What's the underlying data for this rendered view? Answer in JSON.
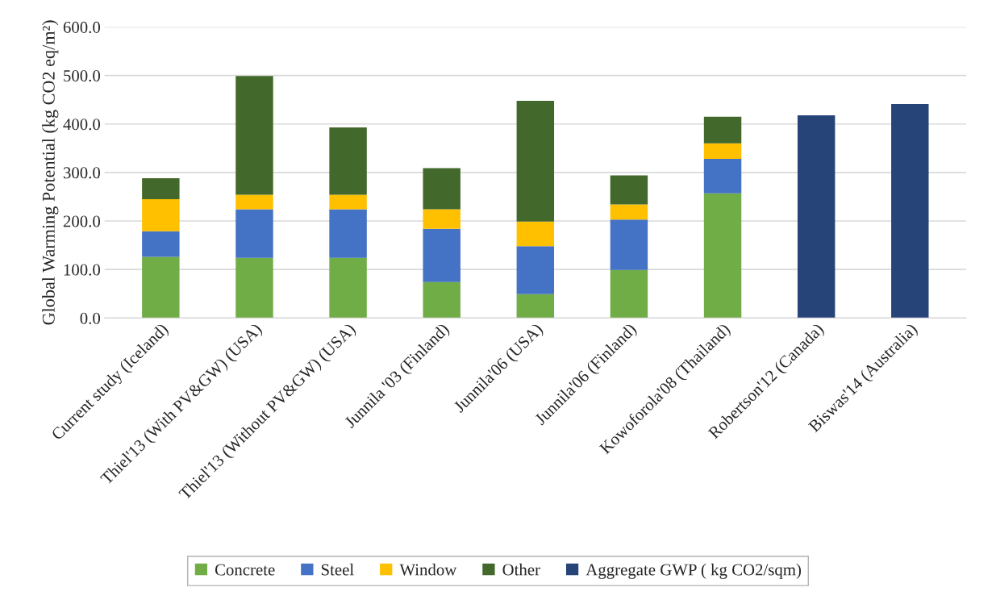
{
  "chart_data": {
    "type": "bar",
    "stacked": true,
    "ylabel": "Global Warming Potential (kg CO2 eq/m²)",
    "categories": [
      "Current study (Iceland)",
      "Thiel'13 (With PV&GW) (USA)",
      "Thiel'13 (Without PV&GW) (USA)",
      "Junnila '03 (Finland)",
      "Junnila'06 (USA)",
      "Junnila'06 (Finland)",
      "Kowoforola'08 (Thailand)",
      "Robertson'12 (Canada)",
      "Biswas'14 (Australia)"
    ],
    "series": [
      {
        "name": "Concrete",
        "color": "#70ad47",
        "values": [
          126,
          124,
          124,
          74,
          49,
          99,
          257,
          null,
          null
        ]
      },
      {
        "name": "Steel",
        "color": "#4472c4",
        "values": [
          53,
          100,
          100,
          110,
          99,
          104,
          71,
          null,
          null
        ]
      },
      {
        "name": "Window",
        "color": "#ffc000",
        "values": [
          66,
          30,
          30,
          40,
          51,
          31,
          32,
          null,
          null
        ]
      },
      {
        "name": "Other",
        "color": "#43682b",
        "values": [
          43,
          245,
          139,
          85,
          249,
          60,
          55,
          null,
          null
        ]
      },
      {
        "name": "Aggregate GWP ( kg CO2/sqm)",
        "color": "#264478",
        "values": [
          null,
          null,
          null,
          null,
          null,
          null,
          null,
          418,
          441
        ]
      }
    ],
    "ylim": [
      0,
      600
    ],
    "yticks": [
      {
        "value": 0,
        "label": "0.0"
      },
      {
        "value": 100,
        "label": "100.0"
      },
      {
        "value": 200,
        "label": "200.0"
      },
      {
        "value": 300,
        "label": "300.0"
      },
      {
        "value": 400,
        "label": "400.0"
      },
      {
        "value": 500,
        "label": "500.0"
      },
      {
        "value": 600,
        "label": "600.0"
      }
    ],
    "grid": "y",
    "legend": "bottom"
  }
}
